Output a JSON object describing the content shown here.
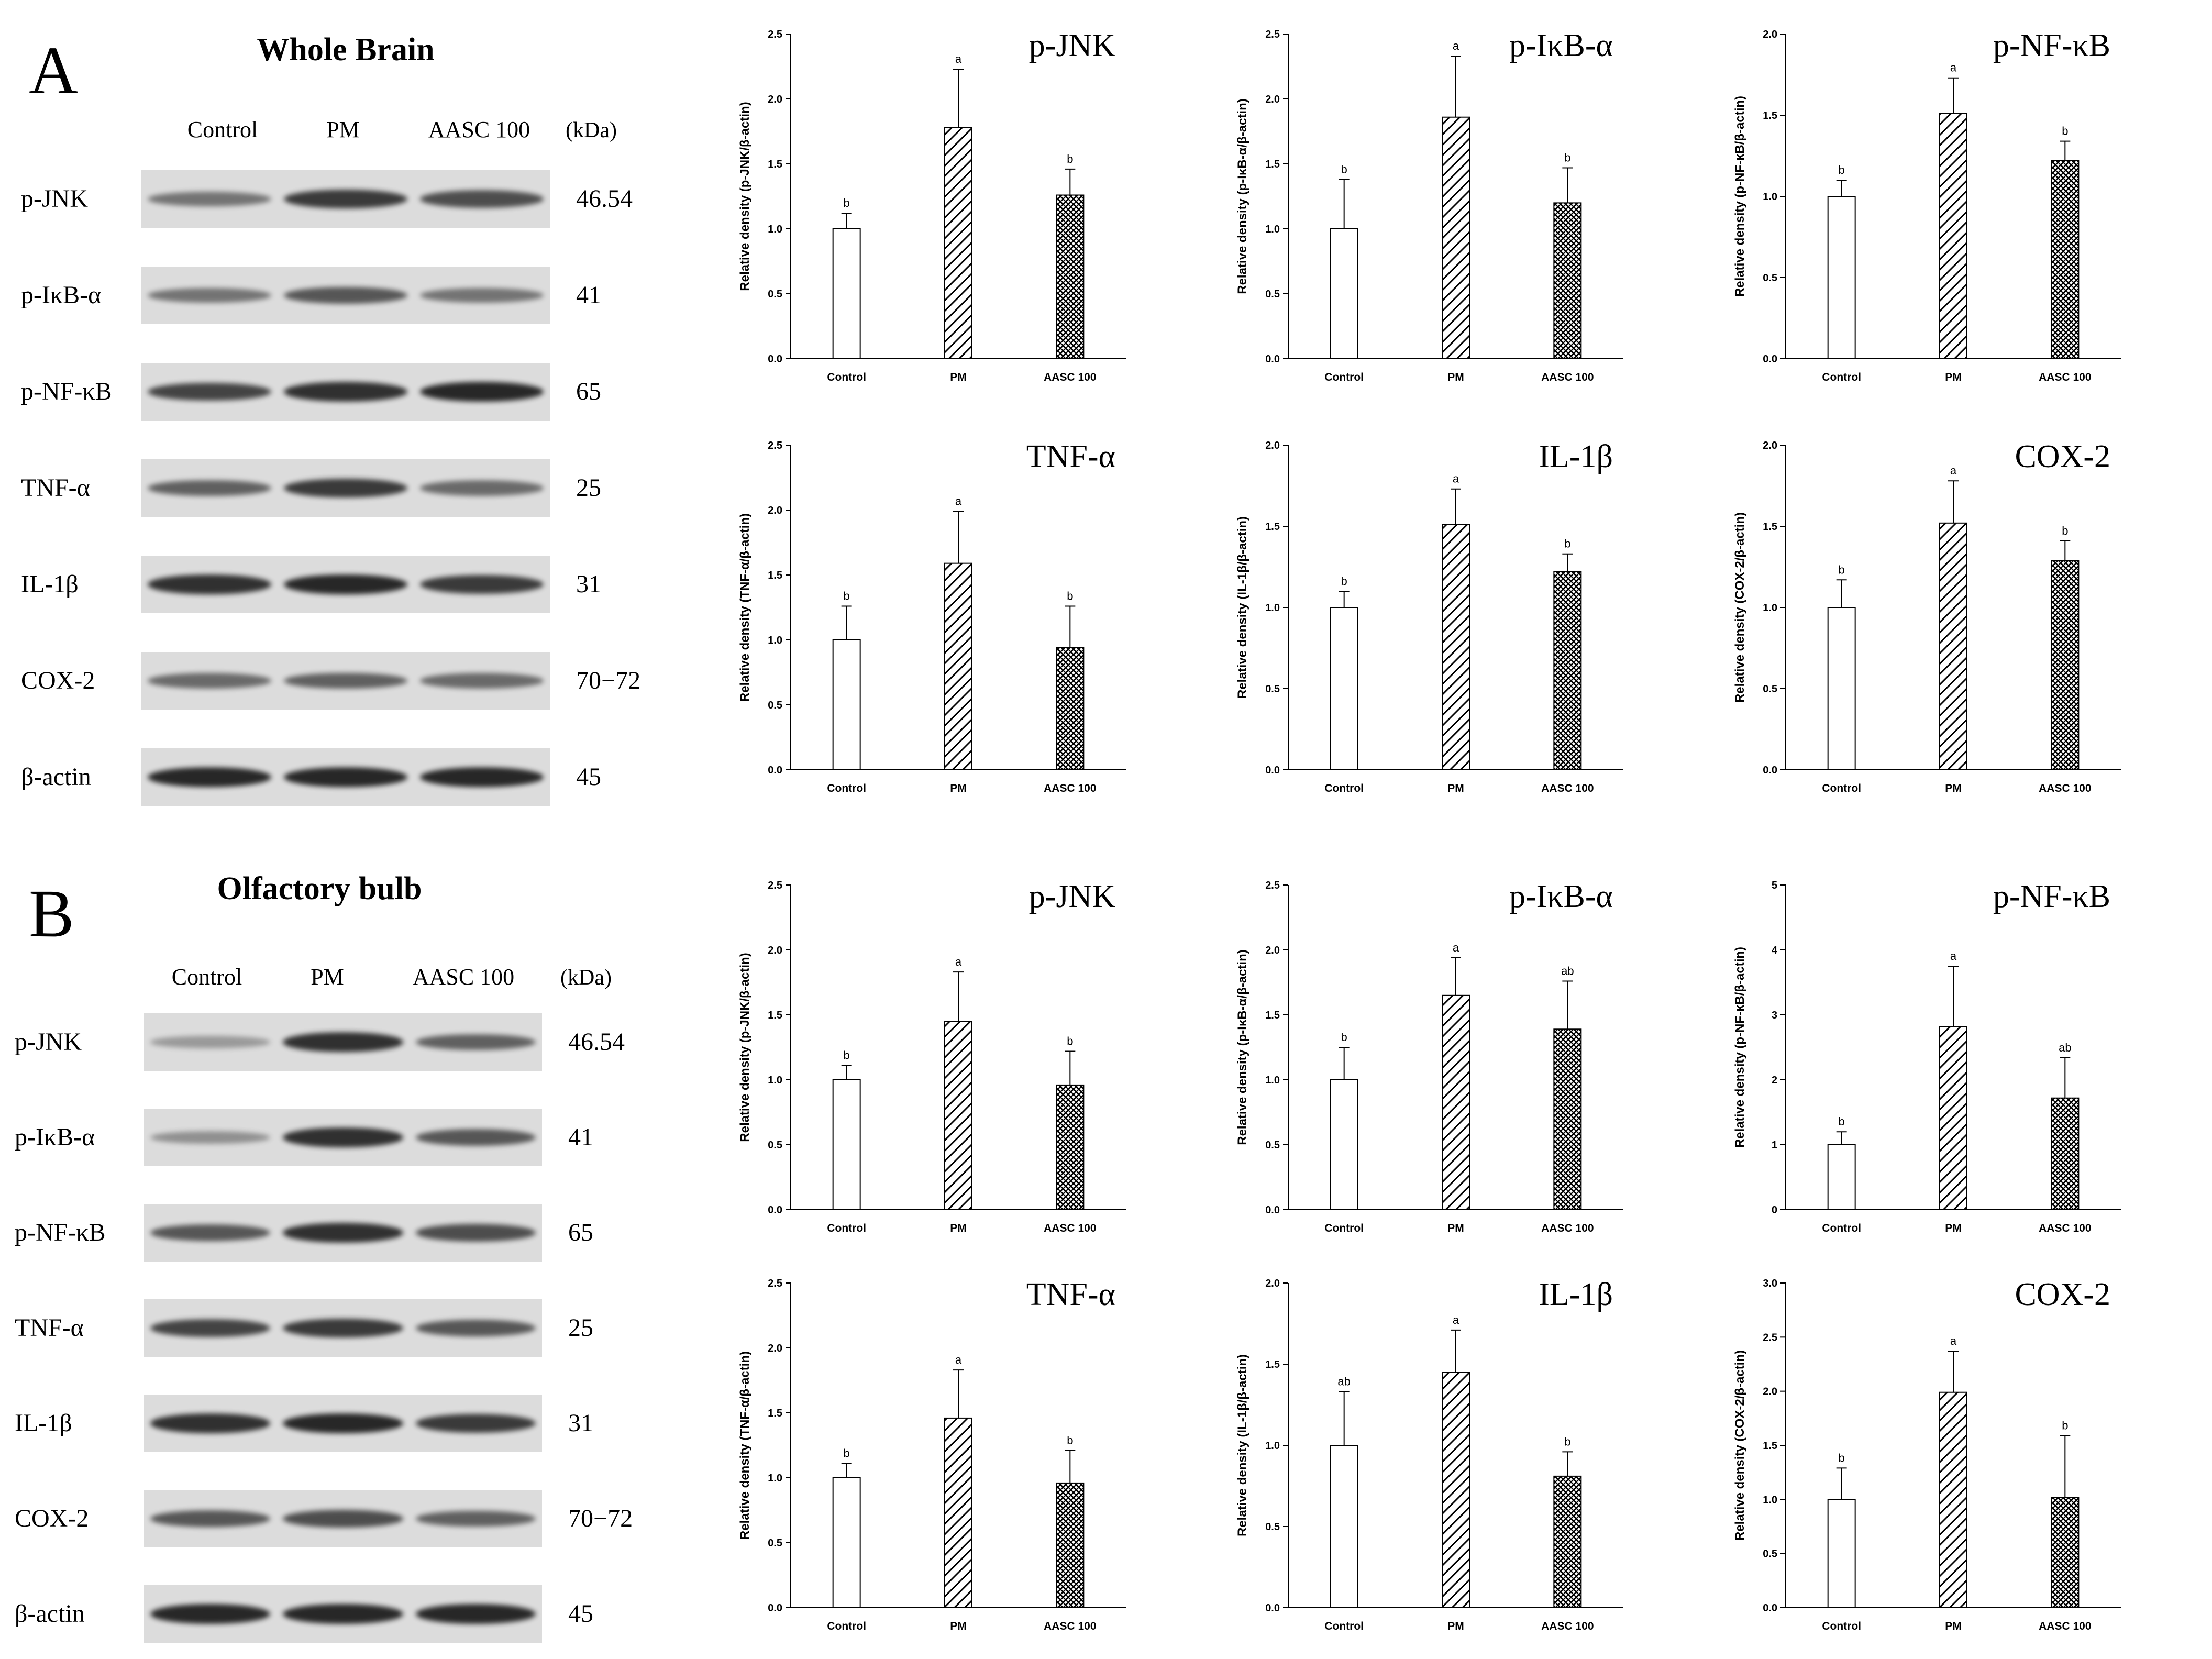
{
  "panels": [
    {
      "letter": "A",
      "title": "Whole Brain",
      "lanes": [
        "Control",
        "PM",
        "AASC 100"
      ],
      "kda_header": "(kDa)",
      "blots": [
        {
          "protein": "p-JNK",
          "kda": "46.54",
          "intensity": [
            0.55,
            0.85,
            0.75
          ]
        },
        {
          "protein": "p-IκB-α",
          "kda": "41",
          "intensity": [
            0.55,
            0.7,
            0.55
          ]
        },
        {
          "protein": "p-NF-κB",
          "kda": "65",
          "intensity": [
            0.8,
            0.9,
            0.95
          ]
        },
        {
          "protein": "TNF-α",
          "kda": "25",
          "intensity": [
            0.65,
            0.85,
            0.6
          ]
        },
        {
          "protein": "IL-1β",
          "kda": "31",
          "intensity": [
            0.9,
            0.95,
            0.85
          ]
        },
        {
          "protein": "COX-2",
          "kda": "70−72",
          "intensity": [
            0.6,
            0.65,
            0.6
          ]
        },
        {
          "protein": "β-actin",
          "kda": "45",
          "intensity": [
            0.95,
            0.95,
            0.95
          ]
        }
      ]
    },
    {
      "letter": "B",
      "title": "Olfactory bulb",
      "lanes": [
        "Control",
        "PM",
        "AASC 100"
      ],
      "kda_header": "(kDa)",
      "blots": [
        {
          "protein": "p-JNK",
          "kda": "46.54",
          "intensity": [
            0.35,
            0.9,
            0.65
          ]
        },
        {
          "protein": "p-IκB-α",
          "kda": "41",
          "intensity": [
            0.4,
            0.9,
            0.7
          ]
        },
        {
          "protein": "p-NF-κB",
          "kda": "65",
          "intensity": [
            0.7,
            0.9,
            0.75
          ]
        },
        {
          "protein": "TNF-α",
          "kda": "25",
          "intensity": [
            0.8,
            0.85,
            0.7
          ]
        },
        {
          "protein": "IL-1β",
          "kda": "31",
          "intensity": [
            0.9,
            0.95,
            0.85
          ]
        },
        {
          "protein": "COX-2",
          "kda": "70−72",
          "intensity": [
            0.7,
            0.75,
            0.65
          ]
        },
        {
          "protein": "β-actin",
          "kda": "45",
          "intensity": [
            0.95,
            0.95,
            0.95
          ]
        }
      ]
    }
  ],
  "chart_data": [
    {
      "type": "bar",
      "title": "p-JNK",
      "ylabel": "Relative density (p-JNK/β-actin)",
      "categories": [
        "Control",
        "PM",
        "AASC 100"
      ],
      "values": [
        1.0,
        1.78,
        1.26
      ],
      "errors": [
        0.12,
        0.45,
        0.2
      ],
      "letters": [
        "b",
        "a",
        "b"
      ],
      "ylim": [
        0,
        2.5
      ],
      "ticks": [
        "0.0",
        "0.5",
        "1.0",
        "1.5",
        "2.0",
        "2.5"
      ]
    },
    {
      "type": "bar",
      "title": "p-IκB-α",
      "ylabel": "Relative density (p-IκB-α/β-actin)",
      "categories": [
        "Control",
        "PM",
        "AASC 100"
      ],
      "values": [
        1.0,
        1.86,
        1.2
      ],
      "errors": [
        0.38,
        0.47,
        0.27
      ],
      "letters": [
        "b",
        "a",
        "b"
      ],
      "ylim": [
        0,
        2.5
      ],
      "ticks": [
        "0.0",
        "0.5",
        "1.0",
        "1.5",
        "2.0",
        "2.5"
      ]
    },
    {
      "type": "bar",
      "title": "p-NF-κB",
      "ylabel": "Relative density (p-NF-κB/β-actin)",
      "categories": [
        "Control",
        "PM",
        "AASC 100"
      ],
      "values": [
        1.0,
        1.51,
        1.22
      ],
      "errors": [
        0.1,
        0.22,
        0.12
      ],
      "letters": [
        "b",
        "a",
        "b"
      ],
      "ylim": [
        0,
        2.0
      ],
      "ticks": [
        "0.0",
        "0.5",
        "1.0",
        "1.5",
        "2.0"
      ]
    },
    {
      "type": "bar",
      "title": "TNF-α",
      "ylabel": "Relative density (TNF-α/β-actin)",
      "categories": [
        "Control",
        "PM",
        "AASC 100"
      ],
      "values": [
        1.0,
        1.59,
        0.94
      ],
      "errors": [
        0.26,
        0.4,
        0.32
      ],
      "letters": [
        "b",
        "a",
        "b"
      ],
      "ylim": [
        0,
        2.5
      ],
      "ticks": [
        "0.0",
        "0.5",
        "1.0",
        "1.5",
        "2.0",
        "2.5"
      ]
    },
    {
      "type": "bar",
      "title": "IL-1β",
      "ylabel": "Relative density (IL-1β/β-actin)",
      "categories": [
        "Control",
        "PM",
        "AASC 100"
      ],
      "values": [
        1.0,
        1.51,
        1.22
      ],
      "errors": [
        0.1,
        0.22,
        0.11
      ],
      "letters": [
        "b",
        "a",
        "b"
      ],
      "ylim": [
        0,
        2.0
      ],
      "ticks": [
        "0.0",
        "0.5",
        "1.0",
        "1.5",
        "2.0"
      ]
    },
    {
      "type": "bar",
      "title": "COX-2",
      "ylabel": "Relative density (COX-2/β-actin)",
      "categories": [
        "Control",
        "PM",
        "AASC 100"
      ],
      "values": [
        1.0,
        1.52,
        1.29
      ],
      "errors": [
        0.17,
        0.26,
        0.12
      ],
      "letters": [
        "b",
        "a",
        "b"
      ],
      "ylim": [
        0,
        2.0
      ],
      "ticks": [
        "0.0",
        "0.5",
        "1.0",
        "1.5",
        "2.0"
      ]
    },
    {
      "type": "bar",
      "title": "p-JNK",
      "ylabel": "Relative density (p-JNK/β-actin)",
      "categories": [
        "Control",
        "PM",
        "AASC 100"
      ],
      "values": [
        1.0,
        1.45,
        0.96
      ],
      "errors": [
        0.11,
        0.38,
        0.26
      ],
      "letters": [
        "b",
        "a",
        "b"
      ],
      "ylim": [
        0,
        2.5
      ],
      "ticks": [
        "0.0",
        "0.5",
        "1.0",
        "1.5",
        "2.0",
        "2.5"
      ]
    },
    {
      "type": "bar",
      "title": "p-IκB-α",
      "ylabel": "Relative density (p-IκB-α/β-actin)",
      "categories": [
        "Control",
        "PM",
        "AASC 100"
      ],
      "values": [
        1.0,
        1.65,
        1.39
      ],
      "errors": [
        0.25,
        0.29,
        0.37
      ],
      "letters": [
        "b",
        "a",
        "ab"
      ],
      "ylim": [
        0,
        2.5
      ],
      "ticks": [
        "0.0",
        "0.5",
        "1.0",
        "1.5",
        "2.0",
        "2.5"
      ]
    },
    {
      "type": "bar",
      "title": "p-NF-κB",
      "ylabel": "Relative density (p-NF-κB/β-actin)",
      "categories": [
        "Control",
        "PM",
        "AASC 100"
      ],
      "values": [
        1.0,
        2.82,
        1.72
      ],
      "errors": [
        0.2,
        0.93,
        0.62
      ],
      "letters": [
        "b",
        "a",
        "ab"
      ],
      "ylim": [
        0,
        5
      ],
      "ticks": [
        "0",
        "1",
        "2",
        "3",
        "4",
        "5"
      ]
    },
    {
      "type": "bar",
      "title": "TNF-α",
      "ylabel": "Relative density (TNF-α/β-actin)",
      "categories": [
        "Control",
        "PM",
        "AASC 100"
      ],
      "values": [
        1.0,
        1.46,
        0.96
      ],
      "errors": [
        0.11,
        0.37,
        0.25
      ],
      "letters": [
        "b",
        "a",
        "b"
      ],
      "ylim": [
        0,
        2.5
      ],
      "ticks": [
        "0.0",
        "0.5",
        "1.0",
        "1.5",
        "2.0",
        "2.5"
      ]
    },
    {
      "type": "bar",
      "title": "IL-1β",
      "ylabel": "Relative density (IL-1β/β-actin)",
      "categories": [
        "Control",
        "PM",
        "AASC 100"
      ],
      "values": [
        1.0,
        1.45,
        0.81
      ],
      "errors": [
        0.33,
        0.26,
        0.15
      ],
      "letters": [
        "ab",
        "a",
        "b"
      ],
      "ylim": [
        0,
        2.0
      ],
      "ticks": [
        "0.0",
        "0.5",
        "1.0",
        "1.5",
        "2.0"
      ]
    },
    {
      "type": "bar",
      "title": "COX-2",
      "ylabel": "Relative density (COX-2/β-actin)",
      "categories": [
        "Control",
        "PM",
        "AASC 100"
      ],
      "values": [
        1.0,
        1.99,
        1.02
      ],
      "errors": [
        0.29,
        0.38,
        0.57
      ],
      "letters": [
        "b",
        "a",
        "b"
      ],
      "ylim": [
        0,
        3.0
      ],
      "ticks": [
        "0.0",
        "0.5",
        "1.0",
        "1.5",
        "2.0",
        "2.5",
        "3.0"
      ]
    }
  ],
  "colors": {
    "control_fill": "#ffffff",
    "bar_stroke": "#000000",
    "blot_bg": "#dcdcdc",
    "band": "#1e1e1e"
  }
}
